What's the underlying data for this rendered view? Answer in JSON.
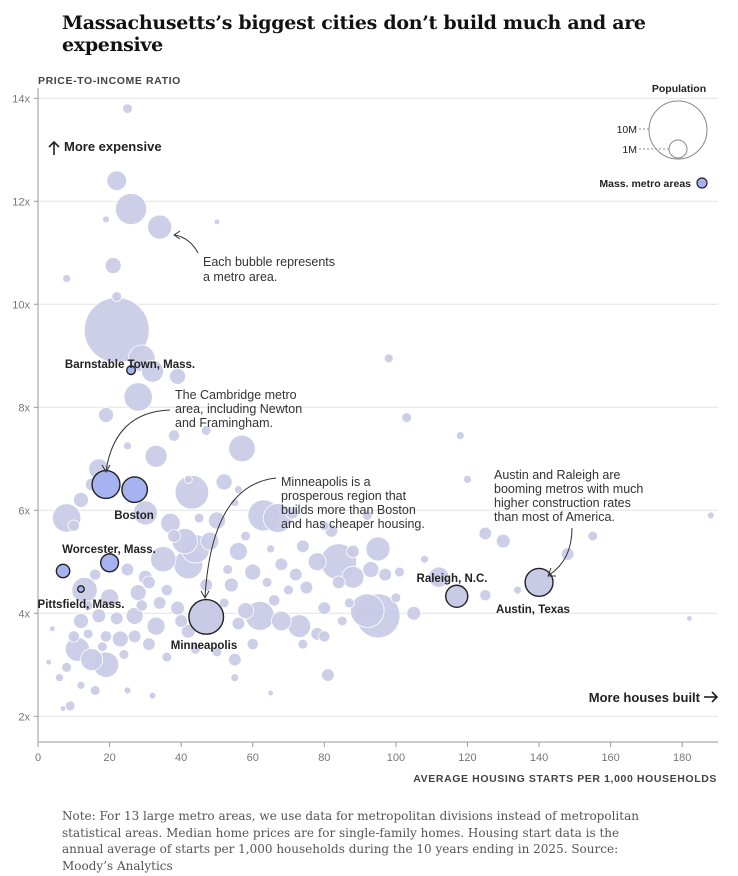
{
  "title": "Massachusetts’s biggest cities don’t build much and are expensive",
  "note": "Note: For 13 large metro areas, we use data for metropolitan divisions instead of metropolitan statistical areas. Median home prices are for single-family homes. Housing start data is the annual average of starts per 1,000 households during the 10 years ending in 2025. Source: Moody’s Analytics",
  "colors": {
    "bubble_fill": "#c9cbe6",
    "bubble_stroke": "#ffffff",
    "mass_fill": "#a7b2f0",
    "highlight_stroke": "#222222",
    "grid": "#e4e4e4",
    "axis": "#999999"
  },
  "icons": {
    "up_arrow": "up-arrow-icon",
    "right_arrow": "right-arrow-icon"
  },
  "chart_data": {
    "type": "scatter",
    "xlabel": "AVERAGE HOUSING STARTS PER 1,000 HOUSEHOLDS",
    "ylabel": "PRICE-TO-INCOME RATIO",
    "xlim": [
      0,
      190
    ],
    "ylim": [
      1.5,
      14.2
    ],
    "x_ticks": [
      0,
      20,
      40,
      60,
      80,
      100,
      120,
      140,
      160,
      180
    ],
    "y_ticks": [
      2,
      4,
      6,
      8,
      10,
      12,
      14
    ],
    "y_tick_labels": [
      "2x",
      "4x",
      "6x",
      "8x",
      "10x",
      "12x",
      "14x"
    ],
    "grid": true,
    "direction_labels": {
      "up": "More expensive",
      "right": "More houses built"
    },
    "legend": {
      "title": "Population",
      "placement": "top-right",
      "sizes": [
        {
          "label": "10M",
          "population_m": 10
        },
        {
          "label": "1M",
          "population_m": 1
        }
      ],
      "mass_label": "Mass. metro areas"
    },
    "annotations": [
      {
        "lines": [
          "Each bubble represents",
          "a metro area."
        ]
      },
      {
        "lines": [
          "The Cambridge metro",
          "area, including Newton",
          "and Framingham."
        ]
      },
      {
        "lines": [
          "Minneapolis is a",
          "prosperous region that",
          "builds more than Boston",
          "and has cheaper housing."
        ]
      },
      {
        "lines": [
          "Austin and Raleigh are",
          "booming metros with much",
          "higher construction rates",
          "than most of America."
        ]
      }
    ],
    "labeled_points": [
      {
        "name": "Boston",
        "x": 27,
        "y": 6.4,
        "population_m": 2.0,
        "group": "mass"
      },
      {
        "name": "",
        "x": 19,
        "y": 6.5,
        "population_m": 2.4,
        "group": "mass"
      },
      {
        "name": "Barnstable Town, Mass.",
        "x": 26,
        "y": 8.72,
        "population_m": 0.23,
        "group": "mass"
      },
      {
        "name": "Worcester, Mass.",
        "x": 20,
        "y": 4.98,
        "population_m": 0.98,
        "group": "mass"
      },
      {
        "name": "Pittsfield, Mass.",
        "x": 12,
        "y": 4.47,
        "population_m": 0.13,
        "group": "mass"
      },
      {
        "name": "",
        "x": 7,
        "y": 4.82,
        "population_m": 0.55,
        "group": "mass"
      },
      {
        "name": "Minneapolis",
        "x": 47,
        "y": 3.93,
        "population_m": 3.7,
        "group": "highlight"
      },
      {
        "name": "Raleigh, N.C.",
        "x": 117,
        "y": 4.33,
        "population_m": 1.5,
        "group": "highlight"
      },
      {
        "name": "Austin, Texas",
        "x": 140,
        "y": 4.6,
        "population_m": 2.4,
        "group": "highlight"
      }
    ],
    "series": [
      {
        "name": "Mass. metro areas",
        "group": "mass"
      }
    ],
    "other_points": [
      [
        22,
        9.5,
        13
      ],
      [
        25,
        13.8,
        0.3
      ],
      [
        22,
        12.4,
        1.2
      ],
      [
        26,
        11.85,
        3.0
      ],
      [
        34,
        11.5,
        1.8
      ],
      [
        19,
        11.65,
        0.15
      ],
      [
        50,
        11.6,
        0.1
      ],
      [
        21,
        10.75,
        0.8
      ],
      [
        8,
        10.5,
        0.2
      ],
      [
        22,
        10.15,
        0.3
      ],
      [
        29,
        8.95,
        2.2
      ],
      [
        32,
        8.7,
        1.5
      ],
      [
        28,
        8.2,
        2.5
      ],
      [
        39,
        8.6,
        0.8
      ],
      [
        98,
        8.95,
        0.25
      ],
      [
        103,
        7.8,
        0.3
      ],
      [
        118,
        7.45,
        0.2
      ],
      [
        19,
        7.85,
        0.7
      ],
      [
        38,
        7.45,
        0.4
      ],
      [
        47,
        7.55,
        0.3
      ],
      [
        57,
        7.2,
        2.2
      ],
      [
        33,
        7.05,
        1.5
      ],
      [
        25,
        7.25,
        0.2
      ],
      [
        17,
        6.8,
        1.3
      ],
      [
        42,
        6.6,
        0.2
      ],
      [
        15,
        6.5,
        0.5
      ],
      [
        43,
        6.35,
        3.5
      ],
      [
        52,
        6.55,
        0.8
      ],
      [
        120,
        6.6,
        0.2
      ],
      [
        56,
        6.4,
        0.2
      ],
      [
        30,
        5.95,
        1.8
      ],
      [
        12,
        6.2,
        0.7
      ],
      [
        8,
        5.85,
        2.5
      ],
      [
        37,
        5.75,
        1.2
      ],
      [
        45,
        5.85,
        0.3
      ],
      [
        55,
        6.15,
        0.2
      ],
      [
        50,
        5.8,
        0.9
      ],
      [
        63,
        5.9,
        3.0
      ],
      [
        67,
        5.85,
        2.6
      ],
      [
        71,
        5.95,
        0.5
      ],
      [
        82,
        5.6,
        0.5
      ],
      [
        92,
        5.9,
        0.3
      ],
      [
        10,
        5.7,
        0.4
      ],
      [
        38,
        5.5,
        0.5
      ],
      [
        41,
        5.4,
        2.0
      ],
      [
        44,
        5.25,
        2.5
      ],
      [
        48,
        5.4,
        1.0
      ],
      [
        58,
        5.5,
        0.3
      ],
      [
        65,
        5.25,
        0.2
      ],
      [
        74,
        5.3,
        0.5
      ],
      [
        80,
        5.7,
        0.3
      ],
      [
        88,
        5.2,
        0.5
      ],
      [
        95,
        5.25,
        1.8
      ],
      [
        125,
        5.55,
        0.5
      ],
      [
        130,
        5.4,
        0.6
      ],
      [
        148,
        5.15,
        0.5
      ],
      [
        155,
        5.5,
        0.3
      ],
      [
        188,
        5.9,
        0.15
      ],
      [
        35,
        5.05,
        2.0
      ],
      [
        42,
        4.95,
        2.6
      ],
      [
        53,
        4.85,
        0.3
      ],
      [
        56,
        5.2,
        1.0
      ],
      [
        60,
        4.8,
        0.8
      ],
      [
        68,
        4.95,
        0.5
      ],
      [
        72,
        4.75,
        0.5
      ],
      [
        78,
        5.0,
        1.0
      ],
      [
        84,
        5.0,
        4.0
      ],
      [
        88,
        4.7,
        1.5
      ],
      [
        93,
        4.85,
        0.8
      ],
      [
        97,
        4.75,
        0.5
      ],
      [
        101,
        4.8,
        0.3
      ],
      [
        108,
        5.05,
        0.2
      ],
      [
        112,
        4.7,
        1.3
      ],
      [
        16,
        4.75,
        0.4
      ],
      [
        25,
        4.85,
        0.5
      ],
      [
        30,
        4.7,
        0.6
      ],
      [
        54,
        4.55,
        0.6
      ],
      [
        64,
        4.6,
        0.3
      ],
      [
        70,
        4.45,
        0.3
      ],
      [
        75,
        4.5,
        0.5
      ],
      [
        84,
        4.6,
        0.5
      ],
      [
        100,
        4.3,
        0.3
      ],
      [
        125,
        4.35,
        0.4
      ],
      [
        134,
        4.45,
        0.2
      ],
      [
        13,
        4.45,
        2.0
      ],
      [
        20,
        4.3,
        1.0
      ],
      [
        28,
        4.4,
        0.8
      ],
      [
        34,
        4.2,
        0.5
      ],
      [
        39,
        4.1,
        0.6
      ],
      [
        58,
        4.05,
        0.8
      ],
      [
        62,
        3.95,
        2.6
      ],
      [
        68,
        3.85,
        1.2
      ],
      [
        73,
        3.75,
        1.6
      ],
      [
        80,
        4.1,
        0.5
      ],
      [
        87,
        4.2,
        0.3
      ],
      [
        95,
        3.95,
        6.0
      ],
      [
        92,
        4.05,
        3.5
      ],
      [
        105,
        4.0,
        0.6
      ],
      [
        33,
        3.75,
        1.0
      ],
      [
        42,
        3.65,
        0.6
      ],
      [
        56,
        3.8,
        0.5
      ],
      [
        78,
        3.6,
        0.5
      ],
      [
        85,
        3.85,
        0.3
      ],
      [
        182,
        3.9,
        0.1
      ],
      [
        4,
        3.7,
        0.1
      ],
      [
        12,
        3.85,
        0.7
      ],
      [
        17,
        3.95,
        0.6
      ],
      [
        23,
        3.5,
        0.8
      ],
      [
        27,
        3.55,
        0.5
      ],
      [
        31,
        3.4,
        0.5
      ],
      [
        11,
        3.3,
        1.8
      ],
      [
        15,
        3.1,
        1.5
      ],
      [
        19,
        3.0,
        2.0
      ],
      [
        8,
        2.95,
        0.3
      ],
      [
        6,
        2.75,
        0.2
      ],
      [
        12,
        2.6,
        0.2
      ],
      [
        16,
        2.5,
        0.3
      ],
      [
        25,
        2.5,
        0.15
      ],
      [
        81,
        2.8,
        0.5
      ],
      [
        55,
        3.1,
        0.5
      ],
      [
        55,
        2.75,
        0.2
      ],
      [
        32,
        2.4,
        0.15
      ],
      [
        65,
        2.45,
        0.1
      ],
      [
        9,
        2.2,
        0.3
      ],
      [
        3,
        3.05,
        0.1
      ],
      [
        7,
        2.15,
        0.1
      ],
      [
        36,
        3.15,
        0.3
      ],
      [
        44,
        3.3,
        0.3
      ],
      [
        60,
        3.4,
        0.4
      ],
      [
        74,
        3.4,
        0.3
      ],
      [
        80,
        3.55,
        0.4
      ],
      [
        50,
        3.25,
        0.3
      ],
      [
        27,
        3.95,
        0.9
      ],
      [
        22,
        3.9,
        0.5
      ],
      [
        29,
        4.15,
        0.4
      ],
      [
        36,
        4.45,
        0.4
      ],
      [
        47,
        4.55,
        0.5
      ],
      [
        14,
        4.15,
        0.3
      ],
      [
        10,
        3.55,
        0.4
      ],
      [
        19,
        3.55,
        0.4
      ],
      [
        24,
        3.2,
        0.3
      ],
      [
        40,
        3.85,
        0.5
      ],
      [
        52,
        4.2,
        0.3
      ],
      [
        66,
        4.25,
        0.4
      ],
      [
        31,
        4.6,
        0.5
      ],
      [
        18,
        3.35,
        0.3
      ],
      [
        14,
        3.6,
        0.3
      ]
    ]
  }
}
